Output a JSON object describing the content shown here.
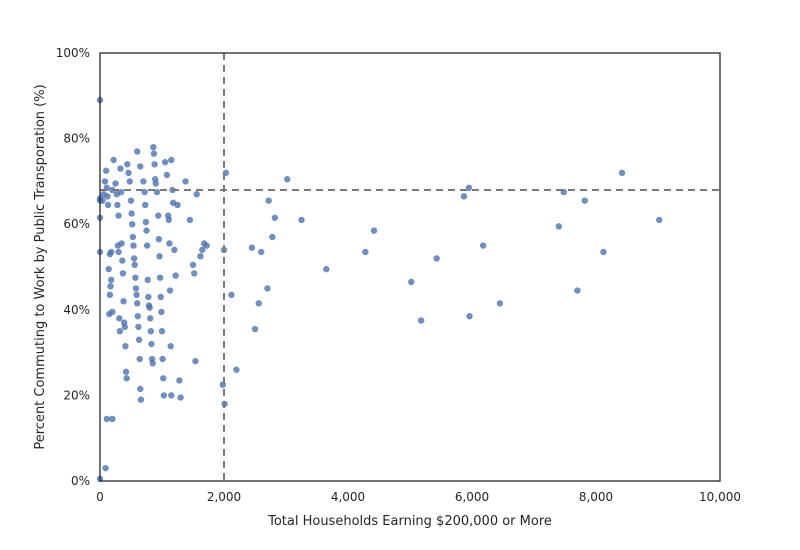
{
  "chart_data": {
    "type": "scatter",
    "title": "",
    "xlabel": "Total Households Earning $200,000 or More",
    "ylabel": "Percent Commuting to Work by Public Transporation (%)",
    "xlim": [
      0,
      10000
    ],
    "ylim": [
      0,
      100
    ],
    "grid": false,
    "x_ticks": [
      0,
      2000,
      4000,
      6000,
      8000,
      10000
    ],
    "x_tick_labels": [
      "0",
      "2,000",
      "4,000",
      "6,000",
      "8,000",
      "10,000"
    ],
    "y_ticks": [
      0,
      20,
      40,
      60,
      80,
      100
    ],
    "y_tick_labels": [
      "0%",
      "20%",
      "40%",
      "60%",
      "80%",
      "100%"
    ],
    "reference_lines": {
      "vertical_x": 2000,
      "horizontal_y": 68
    },
    "series": [
      {
        "color": "#4c72b0",
        "points": [
          [
            0,
            89
          ],
          [
            0,
            53.5
          ],
          [
            0,
            61.5
          ],
          [
            0,
            65.5
          ],
          [
            0,
            0.5
          ],
          [
            0,
            66
          ],
          [
            40,
            65.5
          ],
          [
            60,
            67
          ],
          [
            80,
            70
          ],
          [
            100,
            72.5
          ],
          [
            110,
            68.5
          ],
          [
            120,
            66.5
          ],
          [
            130,
            64.5
          ],
          [
            90,
            3
          ],
          [
            110,
            14.5
          ],
          [
            200,
            14.5
          ],
          [
            150,
            39
          ],
          [
            200,
            39.5
          ],
          [
            160,
            43.5
          ],
          [
            170,
            45.5
          ],
          [
            180,
            47
          ],
          [
            140,
            49.5
          ],
          [
            160,
            53
          ],
          [
            180,
            53.5
          ],
          [
            200,
            68
          ],
          [
            220,
            75
          ],
          [
            250,
            69.5
          ],
          [
            270,
            67
          ],
          [
            280,
            64.5
          ],
          [
            300,
            62
          ],
          [
            290,
            55
          ],
          [
            300,
            53.5
          ],
          [
            310,
            38
          ],
          [
            320,
            35
          ],
          [
            330,
            73
          ],
          [
            340,
            67.5
          ],
          [
            350,
            55.5
          ],
          [
            360,
            51.5
          ],
          [
            370,
            48.5
          ],
          [
            380,
            42
          ],
          [
            390,
            37
          ],
          [
            400,
            36
          ],
          [
            410,
            31.5
          ],
          [
            420,
            25.5
          ],
          [
            430,
            24
          ],
          [
            440,
            74
          ],
          [
            460,
            72
          ],
          [
            480,
            70
          ],
          [
            500,
            65.5
          ],
          [
            510,
            62.5
          ],
          [
            520,
            60
          ],
          [
            530,
            57
          ],
          [
            540,
            55
          ],
          [
            550,
            52
          ],
          [
            560,
            50.5
          ],
          [
            570,
            47.5
          ],
          [
            580,
            45
          ],
          [
            590,
            43.5
          ],
          [
            600,
            41.5
          ],
          [
            610,
            38.5
          ],
          [
            620,
            36
          ],
          [
            630,
            33
          ],
          [
            640,
            28.5
          ],
          [
            650,
            21.5
          ],
          [
            660,
            19
          ],
          [
            600,
            77
          ],
          [
            650,
            73.5
          ],
          [
            700,
            70
          ],
          [
            720,
            67.5
          ],
          [
            730,
            64.5
          ],
          [
            740,
            60.5
          ],
          [
            750,
            58.5
          ],
          [
            760,
            55
          ],
          [
            770,
            47
          ],
          [
            780,
            43
          ],
          [
            790,
            41
          ],
          [
            800,
            40.5
          ],
          [
            810,
            38
          ],
          [
            820,
            35
          ],
          [
            830,
            32
          ],
          [
            840,
            28.5
          ],
          [
            850,
            27.5
          ],
          [
            860,
            78
          ],
          [
            870,
            76.5
          ],
          [
            880,
            74
          ],
          [
            890,
            70.5
          ],
          [
            900,
            69.5
          ],
          [
            920,
            67.5
          ],
          [
            940,
            62
          ],
          [
            950,
            56.5
          ],
          [
            960,
            52.5
          ],
          [
            970,
            47.5
          ],
          [
            980,
            43
          ],
          [
            990,
            39.5
          ],
          [
            1000,
            35
          ],
          [
            1010,
            28.5
          ],
          [
            1020,
            24
          ],
          [
            1030,
            20
          ],
          [
            1050,
            74.5
          ],
          [
            1080,
            71.5
          ],
          [
            1100,
            62
          ],
          [
            1110,
            61
          ],
          [
            1120,
            55.5
          ],
          [
            1130,
            44.5
          ],
          [
            1140,
            31.5
          ],
          [
            1150,
            75
          ],
          [
            1170,
            68
          ],
          [
            1180,
            65
          ],
          [
            1200,
            54
          ],
          [
            1220,
            48
          ],
          [
            1150,
            20
          ],
          [
            1250,
            64.5
          ],
          [
            1280,
            23.5
          ],
          [
            1300,
            19.5
          ],
          [
            1380,
            70
          ],
          [
            1450,
            61
          ],
          [
            1500,
            50.5
          ],
          [
            1520,
            48.5
          ],
          [
            1540,
            28
          ],
          [
            1560,
            67
          ],
          [
            1620,
            52.5
          ],
          [
            1650,
            54
          ],
          [
            1680,
            55.5
          ],
          [
            1720,
            55
          ],
          [
            1980,
            22.5
          ],
          [
            2000,
            54
          ],
          [
            2010,
            18
          ],
          [
            2030,
            72
          ],
          [
            2120,
            43.5
          ],
          [
            2200,
            26
          ],
          [
            2450,
            54.5
          ],
          [
            2500,
            35.5
          ],
          [
            2560,
            41.5
          ],
          [
            2600,
            53.5
          ],
          [
            2700,
            45
          ],
          [
            2720,
            65.5
          ],
          [
            2780,
            57
          ],
          [
            2820,
            61.5
          ],
          [
            3020,
            70.5
          ],
          [
            3250,
            61
          ],
          [
            3650,
            49.5
          ],
          [
            4280,
            53.5
          ],
          [
            4420,
            58.5
          ],
          [
            5020,
            46.5
          ],
          [
            5180,
            37.5
          ],
          [
            5430,
            52
          ],
          [
            5870,
            66.5
          ],
          [
            5950,
            68.5
          ],
          [
            5960,
            38.5
          ],
          [
            6180,
            55
          ],
          [
            6450,
            41.5
          ],
          [
            7400,
            59.5
          ],
          [
            7480,
            67.5
          ],
          [
            7700,
            44.5
          ],
          [
            7820,
            65.5
          ],
          [
            8120,
            53.5
          ],
          [
            8420,
            72
          ],
          [
            9020,
            61
          ]
        ]
      }
    ]
  }
}
